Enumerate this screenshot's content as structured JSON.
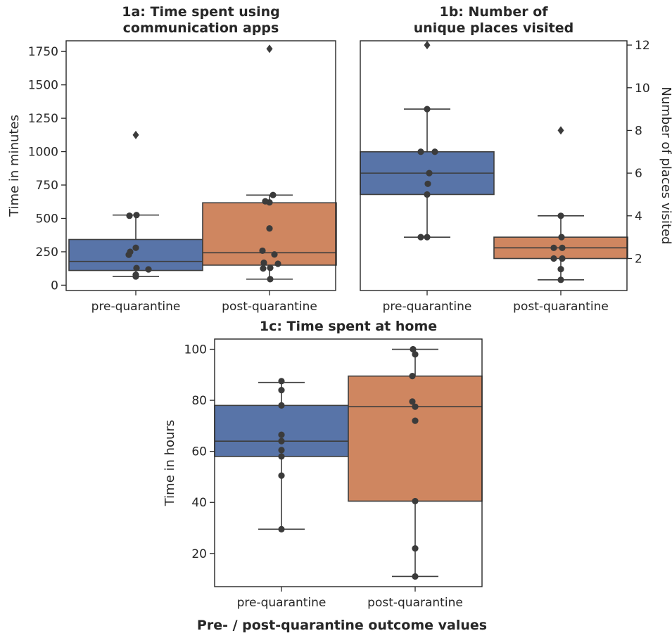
{
  "figure_label": "Pre- / post-quarantine outcome values",
  "colors": {
    "pre": "#5874a8",
    "post": "#cf8660",
    "line": "#3d3d3d",
    "point": "#3b3b3b"
  },
  "chart_data": [
    {
      "id": "1a",
      "type": "box",
      "title_lines": [
        "1a: Time spent using",
        "communication apps"
      ],
      "xlabel": "",
      "ylabel": "Time in minutes",
      "ylabel_side": "left",
      "categories": [
        "pre-quarantine",
        "post-quarantine"
      ],
      "ylim": [
        -40,
        1830
      ],
      "yticks": [
        0,
        250,
        500,
        750,
        1000,
        1250,
        1500,
        1750
      ],
      "boxes": [
        {
          "category": "pre-quarantine",
          "q1": 110,
          "median": 178,
          "q3": 342,
          "whisker_low": 65,
          "whisker_high": 525,
          "outliers": [
            1125
          ]
        },
        {
          "category": "post-quarantine",
          "q1": 150,
          "median": 243,
          "q3": 617,
          "whisker_low": 45,
          "whisker_high": 675,
          "outliers": [
            1770
          ]
        }
      ],
      "points": [
        {
          "category": "pre-quarantine",
          "values": [
            65,
            78,
            118,
            128,
            228,
            250,
            280,
            520,
            525
          ]
        },
        {
          "category": "post-quarantine",
          "values": [
            45,
            125,
            130,
            160,
            168,
            230,
            258,
            425,
            620,
            628,
            675
          ]
        }
      ]
    },
    {
      "id": "1b",
      "type": "box",
      "title_lines": [
        "1b: Number of",
        "unique places visited"
      ],
      "xlabel": "",
      "ylabel": "Number of places visited",
      "ylabel_side": "right",
      "categories": [
        "pre-quarantine",
        "post-quarantine"
      ],
      "ylim": [
        0.5,
        12.2
      ],
      "yticks": [
        2,
        4,
        6,
        8,
        10,
        12
      ],
      "boxes": [
        {
          "category": "pre-quarantine",
          "q1": 5,
          "median": 6,
          "q3": 7,
          "whisker_low": 3,
          "whisker_high": 9,
          "outliers": [
            12
          ]
        },
        {
          "category": "post-quarantine",
          "q1": 2,
          "median": 2.5,
          "q3": 3,
          "whisker_low": 1,
          "whisker_high": 4,
          "outliers": [
            8
          ]
        }
      ],
      "points": [
        {
          "category": "pre-quarantine",
          "values": [
            3,
            3,
            5,
            5.5,
            6,
            7,
            7,
            9
          ]
        },
        {
          "category": "post-quarantine",
          "values": [
            1,
            1.5,
            2,
            2,
            2.5,
            2.5,
            3,
            4
          ]
        }
      ]
    },
    {
      "id": "1c",
      "type": "box",
      "title_lines": [
        "1c: Time spent at home"
      ],
      "xlabel": "Pre- / post-quarantine outcome values",
      "ylabel": "Time in hours",
      "ylabel_side": "left",
      "categories": [
        "pre-quarantine",
        "post-quarantine"
      ],
      "ylim": [
        7,
        104
      ],
      "yticks": [
        20,
        40,
        60,
        80,
        100
      ],
      "boxes": [
        {
          "category": "pre-quarantine",
          "q1": 58,
          "median": 64,
          "q3": 78,
          "whisker_low": 29.5,
          "whisker_high": 87,
          "outliers": []
        },
        {
          "category": "post-quarantine",
          "q1": 40.5,
          "median": 77.5,
          "q3": 89.5,
          "whisker_low": 11,
          "whisker_high": 100,
          "outliers": []
        }
      ],
      "points": [
        {
          "category": "pre-quarantine",
          "values": [
            29.5,
            50.5,
            58,
            60.5,
            64,
            66.5,
            78,
            84,
            87.5
          ]
        },
        {
          "category": "post-quarantine",
          "values": [
            11,
            22,
            40.5,
            72,
            77.5,
            79.5,
            89.5,
            98,
            100
          ]
        }
      ]
    }
  ]
}
